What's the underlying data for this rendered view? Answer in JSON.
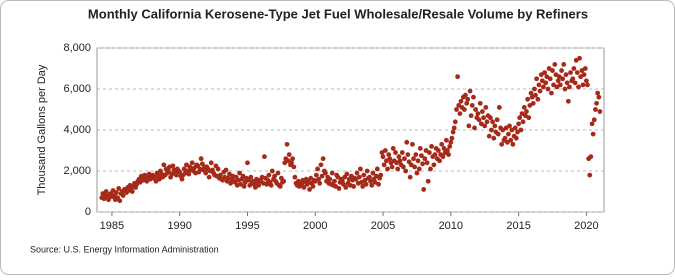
{
  "chart_data": {
    "type": "scatter",
    "title": "Monthly California Kerosene-Type Jet Fuel Wholesale/Resale Volume by Refiners",
    "y_label": "Thousand Gallons per Day",
    "source": "Source: U.S. Energy Information Administration",
    "color": "#a52a1a",
    "grid": true,
    "xlim": [
      1983.9,
      2021.3
    ],
    "ylim": [
      0,
      8000
    ],
    "xticks": [
      1985,
      1990,
      1995,
      2000,
      2005,
      2010,
      2015,
      2020
    ],
    "yticks": [
      0,
      {
        "value": 2000,
        "label": "2,000"
      },
      {
        "value": 4000,
        "label": "4,000"
      },
      {
        "value": 6000,
        "label": "6,000"
      },
      {
        "value": 8000,
        "label": "8,000"
      }
    ],
    "x": [
      1984.25,
      1984.33,
      1984.42,
      1984.5,
      1984.58,
      1984.67,
      1984.75,
      1984.83,
      1984.92,
      1985.0,
      1985.08,
      1985.17,
      1985.25,
      1985.33,
      1985.42,
      1985.5,
      1985.58,
      1985.67,
      1985.75,
      1985.83,
      1985.92,
      1986.0,
      1986.08,
      1986.17,
      1986.25,
      1986.33,
      1986.42,
      1986.5,
      1986.58,
      1986.67,
      1986.75,
      1986.83,
      1986.92,
      1987.0,
      1987.08,
      1987.17,
      1987.25,
      1987.33,
      1987.42,
      1987.5,
      1987.58,
      1987.67,
      1987.75,
      1987.83,
      1987.92,
      1988.0,
      1988.08,
      1988.17,
      1988.25,
      1988.33,
      1988.42,
      1988.5,
      1988.58,
      1988.67,
      1988.75,
      1988.83,
      1988.92,
      1989.0,
      1989.08,
      1989.17,
      1989.25,
      1989.33,
      1989.42,
      1989.5,
      1989.58,
      1989.67,
      1989.75,
      1989.83,
      1989.92,
      1990.0,
      1990.08,
      1990.17,
      1990.25,
      1990.33,
      1990.42,
      1990.5,
      1990.58,
      1990.67,
      1990.75,
      1990.83,
      1990.92,
      1991.0,
      1991.08,
      1991.17,
      1991.25,
      1991.33,
      1991.42,
      1991.5,
      1991.58,
      1991.67,
      1991.75,
      1991.83,
      1991.92,
      1992.0,
      1992.08,
      1992.17,
      1992.25,
      1992.33,
      1992.42,
      1992.5,
      1992.58,
      1992.67,
      1992.75,
      1992.83,
      1992.92,
      1993.0,
      1993.08,
      1993.17,
      1993.25,
      1993.33,
      1993.42,
      1993.5,
      1993.58,
      1993.67,
      1993.75,
      1993.83,
      1993.92,
      1994.0,
      1994.08,
      1994.17,
      1994.25,
      1994.33,
      1994.42,
      1994.5,
      1994.58,
      1994.67,
      1994.75,
      1994.83,
      1994.92,
      1995.0,
      1995.08,
      1995.17,
      1995.25,
      1995.33,
      1995.42,
      1995.5,
      1995.58,
      1995.67,
      1995.75,
      1995.83,
      1995.92,
      1996.0,
      1996.08,
      1996.17,
      1996.25,
      1996.33,
      1996.42,
      1996.5,
      1996.58,
      1996.67,
      1996.75,
      1996.83,
      1996.92,
      1997.0,
      1997.08,
      1997.17,
      1997.25,
      1997.33,
      1997.42,
      1997.5,
      1997.58,
      1997.67,
      1997.75,
      1997.83,
      1997.92,
      1998.0,
      1998.08,
      1998.17,
      1998.25,
      1998.33,
      1998.42,
      1998.5,
      1998.58,
      1998.67,
      1998.75,
      1998.83,
      1998.92,
      1999.0,
      1999.08,
      1999.17,
      1999.25,
      1999.33,
      1999.42,
      1999.5,
      1999.58,
      1999.67,
      1999.75,
      1999.83,
      1999.92,
      2000.0,
      2000.08,
      2000.17,
      2000.25,
      2000.33,
      2000.42,
      2000.5,
      2000.58,
      2000.67,
      2000.75,
      2000.83,
      2000.92,
      2001.0,
      2001.08,
      2001.17,
      2001.25,
      2001.33,
      2001.42,
      2001.5,
      2001.58,
      2001.67,
      2001.75,
      2001.83,
      2001.92,
      2002.0,
      2002.08,
      2002.17,
      2002.25,
      2002.33,
      2002.42,
      2002.5,
      2002.58,
      2002.67,
      2002.75,
      2002.83,
      2002.92,
      2003.0,
      2003.08,
      2003.17,
      2003.25,
      2003.33,
      2003.42,
      2003.5,
      2003.58,
      2003.67,
      2003.75,
      2003.83,
      2003.92,
      2004.0,
      2004.08,
      2004.17,
      2004.25,
      2004.33,
      2004.42,
      2004.5,
      2004.58,
      2004.67,
      2004.75,
      2004.83,
      2004.92,
      2005.0,
      2005.08,
      2005.17,
      2005.25,
      2005.33,
      2005.42,
      2005.5,
      2005.58,
      2005.67,
      2005.75,
      2005.83,
      2005.92,
      2006.0,
      2006.08,
      2006.17,
      2006.25,
      2006.33,
      2006.42,
      2006.5,
      2006.58,
      2006.67,
      2006.75,
      2006.83,
      2006.92,
      2007.0,
      2007.08,
      2007.17,
      2007.25,
      2007.33,
      2007.42,
      2007.5,
      2007.58,
      2007.67,
      2007.75,
      2007.83,
      2007.92,
      2008.0,
      2008.08,
      2008.17,
      2008.25,
      2008.33,
      2008.42,
      2008.5,
      2008.58,
      2008.67,
      2008.75,
      2008.83,
      2008.92,
      2009.0,
      2009.08,
      2009.17,
      2009.25,
      2009.33,
      2009.42,
      2009.5,
      2009.58,
      2009.67,
      2009.75,
      2009.83,
      2009.92,
      2010.0,
      2010.08,
      2010.17,
      2010.25,
      2010.33,
      2010.42,
      2010.5,
      2010.58,
      2010.67,
      2010.75,
      2010.83,
      2010.92,
      2011.0,
      2011.08,
      2011.17,
      2011.25,
      2011.33,
      2011.42,
      2011.5,
      2011.58,
      2011.67,
      2011.75,
      2011.83,
      2011.92,
      2012.0,
      2012.08,
      2012.17,
      2012.25,
      2012.33,
      2012.42,
      2012.5,
      2012.58,
      2012.67,
      2012.75,
      2012.83,
      2012.92,
      2013.0,
      2013.08,
      2013.17,
      2013.25,
      2013.33,
      2013.42,
      2013.5,
      2013.58,
      2013.67,
      2013.75,
      2013.83,
      2013.92,
      2014.0,
      2014.08,
      2014.17,
      2014.25,
      2014.33,
      2014.42,
      2014.5,
      2014.58,
      2014.67,
      2014.75,
      2014.83,
      2014.92,
      2015.0,
      2015.08,
      2015.17,
      2015.25,
      2015.33,
      2015.42,
      2015.5,
      2015.58,
      2015.67,
      2015.75,
      2015.83,
      2015.92,
      2016.0,
      2016.08,
      2016.17,
      2016.25,
      2016.33,
      2016.42,
      2016.5,
      2016.58,
      2016.67,
      2016.75,
      2016.83,
      2016.92,
      2017.0,
      2017.08,
      2017.17,
      2017.25,
      2017.33,
      2017.42,
      2017.5,
      2017.58,
      2017.67,
      2017.75,
      2017.83,
      2017.92,
      2018.0,
      2018.08,
      2018.17,
      2018.25,
      2018.33,
      2018.42,
      2018.5,
      2018.58,
      2018.67,
      2018.75,
      2018.83,
      2018.92,
      2019.0,
      2019.08,
      2019.17,
      2019.25,
      2019.33,
      2019.42,
      2019.5,
      2019.58,
      2019.67,
      2019.75,
      2019.83,
      2019.92,
      2020.0,
      2020.08,
      2020.17,
      2020.25,
      2020.33,
      2020.42,
      2020.5,
      2020.58,
      2020.67,
      2020.75,
      2020.83,
      2020.92,
      2021.0
    ],
    "values": [
      700,
      900,
      650,
      800,
      1000,
      750,
      600,
      850,
      900,
      750,
      1050,
      800,
      600,
      950,
      700,
      1150,
      550,
      900,
      1000,
      800,
      1100,
      1100,
      950,
      1200,
      1050,
      1300,
      1150,
      1000,
      1250,
      1400,
      1200,
      1350,
      1500,
      1600,
      1450,
      1750,
      1700,
      1550,
      1800,
      1650,
      1500,
      1750,
      1850,
      1600,
      1700,
      1800,
      1650,
      1700,
      1500,
      1900,
      1750,
      1600,
      2000,
      1850,
      1700,
      2300,
      1800,
      2100,
      1900,
      2000,
      2200,
      1700,
      1850,
      2250,
      2050,
      1950,
      1800,
      2100,
      2000,
      1950,
      1750,
      1600,
      1800,
      2100,
      1900,
      2300,
      2000,
      1850,
      2200,
      2050,
      2400,
      2000,
      2150,
      1900,
      2300,
      2250,
      1950,
      2100,
      2600,
      2350,
      2050,
      2200,
      1900,
      2200,
      2100,
      1700,
      2000,
      2400,
      2050,
      1900,
      1800,
      2250,
      1750,
      2100,
      1650,
      1800,
      1600,
      1550,
      1950,
      1700,
      2050,
      1500,
      1650,
      1850,
      1400,
      1600,
      1750,
      1500,
      1450,
      1700,
      1300,
      1550,
      1900,
      1350,
      1600,
      1750,
      1250,
      1450,
      1650,
      2400,
      1550,
      1300,
      1700,
      1400,
      1500,
      1350,
      1200,
      1600,
      1450,
      1300,
      1550,
      1500,
      1700,
      1400,
      2700,
      1650,
      1350,
      1550,
      1800,
      1450,
      1300,
      2000,
      1600,
      1750,
      1500,
      1400,
      1900,
      1300,
      1250,
      1650,
      1450,
      1500,
      2400,
      2600,
      3300,
      2500,
      2800,
      2300,
      2400,
      2600,
      2200,
      1700,
      1400,
      1300,
      1500,
      1250,
      1400,
      1300,
      1550,
      1200,
      1450,
      1600,
      1350,
      1500,
      1100,
      1650,
      1400,
      1250,
      1550,
      1500,
      1800,
      2100,
      1600,
      1400,
      2300,
      1750,
      2600,
      2000,
      1900,
      1500,
      1700,
      1400,
      1600,
      1350,
      1900,
      1300,
      1500,
      1250,
      1800,
      1700,
      1150,
      1450,
      1600,
      1500,
      1350,
      1700,
      1200,
      1850,
      1400,
      1600,
      1300,
      1750,
      1550,
      1250,
      1650,
      1600,
      1900,
      1400,
      1700,
      2100,
      1450,
      1250,
      1800,
      1550,
      1350,
      2000,
      1650,
      1700,
      1500,
      1300,
      1900,
      1600,
      1450,
      1750,
      2100,
      1350,
      1650,
      1800,
      2900,
      2700,
      2300,
      3000,
      2500,
      2100,
      2800,
      2600,
      2400,
      2200,
      3100,
      2500,
      2900,
      2400,
      2100,
      2700,
      2500,
      2300,
      2900,
      2200,
      2600,
      2000,
      3400,
      2800,
      2450,
      1700,
      2300,
      3300,
      2600,
      2200,
      2800,
      1900,
      2500,
      2100,
      3100,
      2750,
      2350,
      1100,
      2600,
      3000,
      2400,
      1500,
      2900,
      2100,
      3200,
      2700,
      2300,
      2800,
      3100,
      2600,
      3000,
      2500,
      2800,
      3300,
      2700,
      3100,
      2900,
      3500,
      3000,
      2800,
      3200,
      3400,
      3600,
      3900,
      4100,
      4400,
      5000,
      6600,
      5200,
      4800,
      5400,
      5100,
      5600,
      5000,
      5700,
      5300,
      5500,
      4200,
      5900,
      4700,
      5200,
      5600,
      4100,
      5000,
      4600,
      4800,
      4500,
      5300,
      4300,
      4900,
      4600,
      4200,
      5100,
      4400,
      4700,
      3700,
      4600,
      4000,
      4400,
      3600,
      4200,
      3900,
      4500,
      3800,
      5100,
      4100,
      3300,
      4000,
      3500,
      3600,
      4100,
      3400,
      3800,
      4200,
      3500,
      4000,
      3300,
      3700,
      4100,
      3600,
      3900,
      4300,
      4600,
      4000,
      4800,
      4400,
      5100,
      4700,
      4900,
      5500,
      4600,
      5200,
      5800,
      5600,
      5300,
      6000,
      5700,
      6500,
      5500,
      6200,
      5900,
      6700,
      6400,
      6100,
      6800,
      6300,
      6600,
      6000,
      7000,
      6500,
      5800,
      6900,
      6200,
      7200,
      6700,
      6100,
      6400,
      6600,
      6200,
      6900,
      6500,
      7200,
      6000,
      6700,
      6300,
      5400,
      6100,
      6800,
      6400,
      6500,
      7000,
      6300,
      7400,
      6800,
      6100,
      7500,
      6600,
      6900,
      6200,
      6700,
      7000,
      6400,
      6200,
      2600,
      1800,
      2700,
      4300,
      3800,
      4500,
      5000,
      5300,
      5800,
      5600,
      4900
    ]
  }
}
